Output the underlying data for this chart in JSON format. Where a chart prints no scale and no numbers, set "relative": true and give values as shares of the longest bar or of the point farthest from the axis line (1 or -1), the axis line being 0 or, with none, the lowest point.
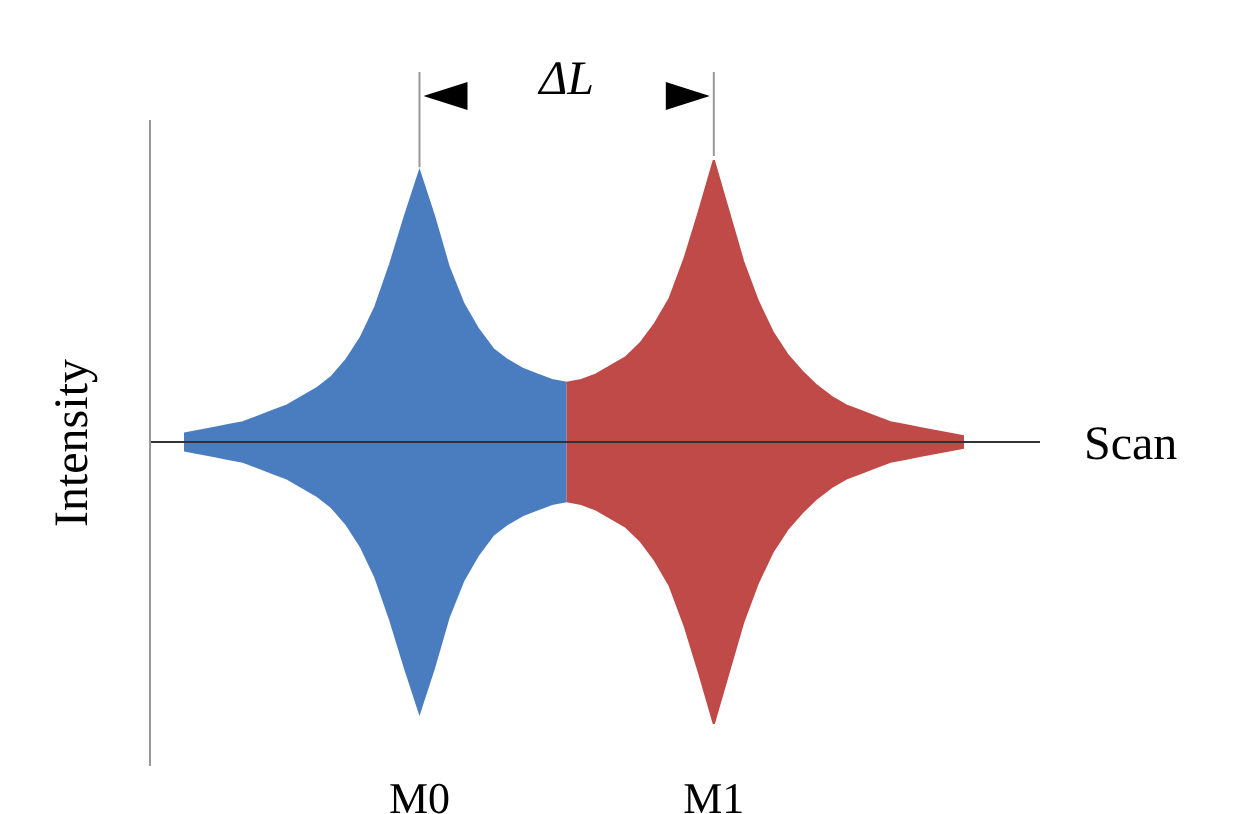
{
  "chart_data": {
    "type": "area",
    "relative": true,
    "xlabel": "Scan",
    "ylabel": "Intensity",
    "annotations": [
      "ΔL"
    ],
    "legend": false,
    "grid": false,
    "categories": [
      null,
      null,
      null,
      null,
      null,
      null,
      null,
      null,
      null,
      null,
      null,
      null,
      null,
      null,
      null,
      null,
      "M0",
      null,
      null,
      null,
      null,
      null,
      null,
      null,
      null,
      null,
      null,
      null,
      null,
      null,
      null,
      null,
      null,
      null,
      null,
      null,
      "M1",
      null,
      null,
      null,
      null,
      null,
      null,
      null,
      null,
      null,
      null,
      null,
      null,
      null,
      null,
      null,
      null,
      null
    ],
    "series": [
      {
        "color": "#4a7dbf",
        "values": [
          0.03,
          0.04,
          0.05,
          0.06,
          0.07,
          0.09,
          0.11,
          0.13,
          0.16,
          0.19,
          0.23,
          0.29,
          0.37,
          0.48,
          0.63,
          0.8,
          0.96,
          0.8,
          0.62,
          0.49,
          0.4,
          0.33,
          0.29,
          0.26,
          0.24,
          0.22,
          0.21,
          null,
          null,
          null,
          null,
          null,
          null,
          null,
          null,
          null,
          null,
          null,
          null,
          null,
          null,
          null,
          null,
          null,
          null,
          null,
          null,
          null,
          null,
          null,
          null,
          null,
          null,
          null
        ]
      },
      {
        "color": "#4a7dbf",
        "values": [
          -0.03,
          -0.04,
          -0.05,
          -0.06,
          -0.07,
          -0.09,
          -0.11,
          -0.13,
          -0.16,
          -0.19,
          -0.23,
          -0.29,
          -0.37,
          -0.48,
          -0.63,
          -0.8,
          -0.96,
          -0.8,
          -0.62,
          -0.49,
          -0.4,
          -0.33,
          -0.29,
          -0.26,
          -0.24,
          -0.22,
          -0.21,
          null,
          null,
          null,
          null,
          null,
          null,
          null,
          null,
          null,
          null,
          null,
          null,
          null,
          null,
          null,
          null,
          null,
          null,
          null,
          null,
          null,
          null,
          null,
          null,
          null,
          null,
          null
        ]
      },
      {
        "color": "#bf4a48",
        "values": [
          null,
          null,
          null,
          null,
          null,
          null,
          null,
          null,
          null,
          null,
          null,
          null,
          null,
          null,
          null,
          null,
          null,
          null,
          null,
          null,
          null,
          null,
          null,
          null,
          null,
          null,
          0.21,
          0.22,
          0.24,
          0.27,
          0.3,
          0.35,
          0.42,
          0.51,
          0.65,
          0.82,
          1,
          0.82,
          0.64,
          0.5,
          0.39,
          0.31,
          0.25,
          0.2,
          0.16,
          0.13,
          0.11,
          0.09,
          0.07,
          0.06,
          0.05,
          0.04,
          0.03,
          0.02
        ]
      },
      {
        "color": "#bf4a48",
        "values": [
          null,
          null,
          null,
          null,
          null,
          null,
          null,
          null,
          null,
          null,
          null,
          null,
          null,
          null,
          null,
          null,
          null,
          null,
          null,
          null,
          null,
          null,
          null,
          null,
          null,
          null,
          -0.21,
          -0.22,
          -0.24,
          -0.27,
          -0.3,
          -0.35,
          -0.42,
          -0.51,
          -0.65,
          -0.82,
          -1,
          -0.82,
          -0.64,
          -0.5,
          -0.39,
          -0.31,
          -0.25,
          -0.2,
          -0.16,
          -0.13,
          -0.11,
          -0.09,
          -0.07,
          -0.06,
          -0.05,
          -0.04,
          -0.03,
          -0.02
        ]
      }
    ]
  }
}
